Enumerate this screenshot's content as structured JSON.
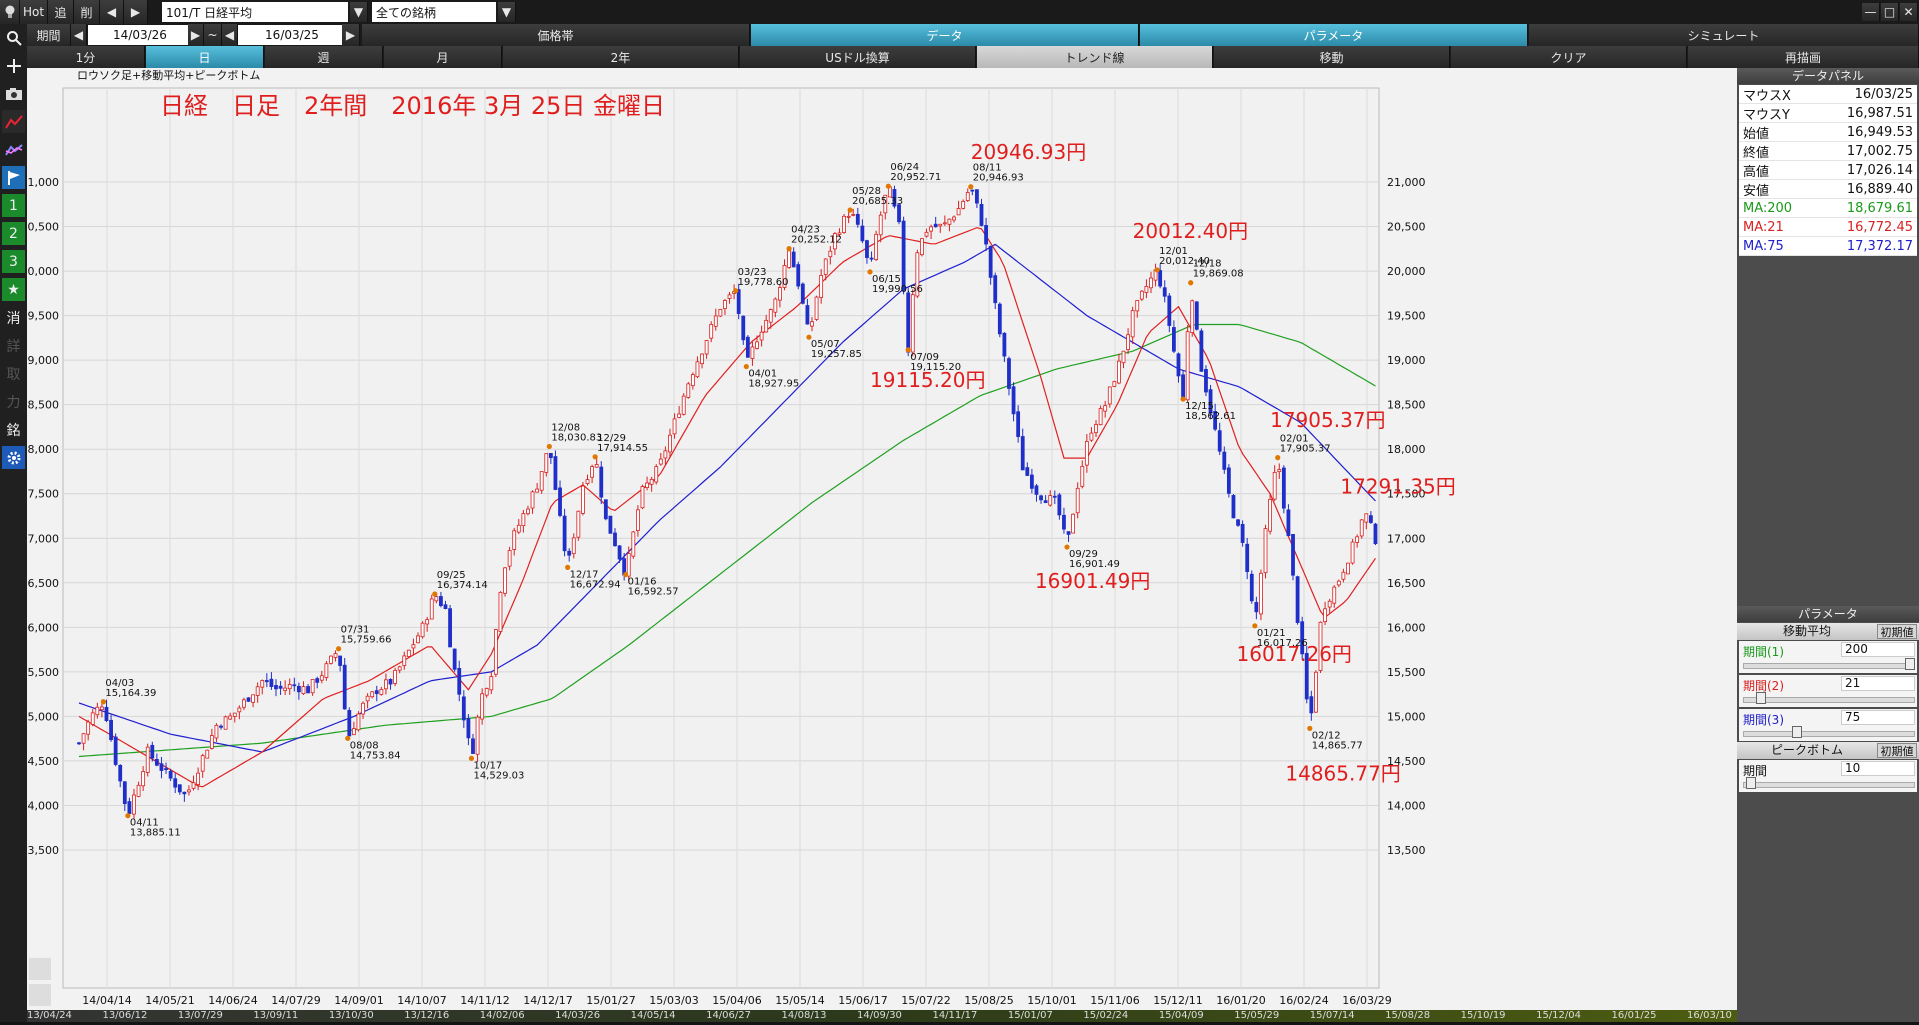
{
  "toolbar": {
    "hot": "Hot",
    "add": "追",
    "del": "削",
    "prev": "◀",
    "next": "▶",
    "symbol": "101/T 日経平均",
    "universe": "全ての銘柄"
  },
  "row2": {
    "period_label": "期間",
    "from": "14/03/26",
    "tilde": "~",
    "to": "16/03/25",
    "tabs": [
      "価格帯",
      "データ",
      "パラメータ",
      "シミュレート"
    ]
  },
  "row3": {
    "timeframes": [
      "1分",
      "日",
      "週",
      "月",
      "2年"
    ],
    "tools": [
      "USドル換算",
      "トレンド線",
      "移動",
      "クリア",
      "再描画"
    ]
  },
  "sidebar": {
    "icons": [
      "search-icon",
      "plus-icon",
      "camera-icon",
      "chart-line-icon",
      "chart-multi-icon",
      "flag-icon",
      "number-1-icon",
      "number-2-icon",
      "number-3-icon",
      "star-icon"
    ],
    "labels": [
      "1",
      "2",
      "3",
      "★",
      "消",
      "詳",
      "取",
      "力",
      "銘"
    ]
  },
  "chart_data": {
    "type": "candlestick",
    "subtitle": "ロウソク足+移動平均+ピークボトム",
    "title": "日経　日足　2年間　2016年 3月 25日 金曜日",
    "ylim": [
      13500,
      21000
    ],
    "yticks": [
      "13,500",
      "14,000",
      "14,500",
      "15,000",
      "15,500",
      "16,000",
      "16,500",
      "17,000",
      "17,500",
      "18,000",
      "18,500",
      "19,000",
      "19,500",
      "20,000",
      "20,500",
      "21,000"
    ],
    "xticks": [
      "14/04/14",
      "14/05/21",
      "14/06/24",
      "14/07/29",
      "14/09/01",
      "14/10/07",
      "14/11/12",
      "14/12/17",
      "15/01/27",
      "15/03/03",
      "15/04/06",
      "15/05/14",
      "15/06/17",
      "15/07/22",
      "15/08/25",
      "15/10/01",
      "15/11/06",
      "15/12/11",
      "16/01/20",
      "16/02/24",
      "16/03/29"
    ],
    "price_path": [
      [
        0,
        14700
      ],
      [
        8,
        15000
      ],
      [
        16,
        15164.39
      ],
      [
        24,
        14500
      ],
      [
        32,
        13885.11
      ],
      [
        45,
        14600
      ],
      [
        60,
        14300
      ],
      [
        70,
        14100
      ],
      [
        80,
        14500
      ],
      [
        90,
        14900
      ],
      [
        100,
        15000
      ],
      [
        110,
        15200
      ],
      [
        120,
        15400
      ],
      [
        130,
        15300
      ],
      [
        140,
        15350
      ],
      [
        150,
        15300
      ],
      [
        160,
        15500
      ],
      [
        170,
        15759.66
      ],
      [
        176,
        14753.84
      ],
      [
        185,
        15100
      ],
      [
        195,
        15300
      ],
      [
        205,
        15400
      ],
      [
        215,
        15700
      ],
      [
        225,
        16000
      ],
      [
        233,
        16374.14
      ],
      [
        240,
        16200
      ],
      [
        245,
        15600
      ],
      [
        252,
        15000
      ],
      [
        257,
        14529.03
      ],
      [
        263,
        15200
      ],
      [
        270,
        15500
      ],
      [
        277,
        16600
      ],
      [
        284,
        17000
      ],
      [
        292,
        17300
      ],
      [
        300,
        17600
      ],
      [
        308,
        18030.83
      ],
      [
        315,
        17200
      ],
      [
        320,
        16672.94
      ],
      [
        330,
        17600
      ],
      [
        338,
        17914.55
      ],
      [
        345,
        17200
      ],
      [
        350,
        17000
      ],
      [
        358,
        16592.57
      ],
      [
        368,
        17500
      ],
      [
        380,
        17800
      ],
      [
        390,
        18300
      ],
      [
        400,
        18800
      ],
      [
        410,
        19200
      ],
      [
        420,
        19600
      ],
      [
        430,
        19778.6
      ],
      [
        437,
        18927.95
      ],
      [
        445,
        19300
      ],
      [
        455,
        19600
      ],
      [
        465,
        20252.12
      ],
      [
        472,
        19800
      ],
      [
        478,
        19257.85
      ],
      [
        485,
        19900
      ],
      [
        495,
        20400
      ],
      [
        505,
        20685.33
      ],
      [
        512,
        20400
      ],
      [
        518,
        19990.56
      ],
      [
        523,
        20500
      ],
      [
        530,
        20952.71
      ],
      [
        537,
        20500
      ],
      [
        543,
        19115.2
      ],
      [
        548,
        20200
      ],
      [
        556,
        20500
      ],
      [
        566,
        20500
      ],
      [
        576,
        20700
      ],
      [
        584,
        20946.93
      ],
      [
        592,
        20500
      ],
      [
        600,
        19600
      ],
      [
        608,
        18800
      ],
      [
        618,
        17800
      ],
      [
        628,
        17500
      ],
      [
        640,
        17400
      ],
      [
        647,
        16901.49
      ],
      [
        654,
        17600
      ],
      [
        662,
        18200
      ],
      [
        672,
        18500
      ],
      [
        682,
        19000
      ],
      [
        690,
        19500
      ],
      [
        698,
        19800
      ],
      [
        706,
        20012.4
      ],
      [
        712,
        19600
      ],
      [
        718,
        19000
      ],
      [
        723,
        18562.61
      ],
      [
        728,
        19869.08
      ],
      [
        734,
        19000
      ],
      [
        744,
        18200
      ],
      [
        754,
        17400
      ],
      [
        764,
        16800
      ],
      [
        770,
        16017.26
      ],
      [
        778,
        17200
      ],
      [
        785,
        17905.37
      ],
      [
        792,
        17000
      ],
      [
        800,
        15800
      ],
      [
        806,
        14865.77
      ],
      [
        814,
        16200
      ],
      [
        824,
        16500
      ],
      [
        834,
        16900
      ],
      [
        842,
        17291.35
      ],
      [
        850,
        16950
      ]
    ],
    "ma21_path": [
      [
        0,
        15000
      ],
      [
        40,
        14600
      ],
      [
        80,
        14200
      ],
      [
        120,
        14600
      ],
      [
        160,
        15200
      ],
      [
        190,
        15400
      ],
      [
        230,
        15800
      ],
      [
        255,
        15300
      ],
      [
        270,
        15700
      ],
      [
        290,
        16500
      ],
      [
        310,
        17400
      ],
      [
        330,
        17600
      ],
      [
        350,
        17300
      ],
      [
        380,
        17700
      ],
      [
        410,
        18600
      ],
      [
        440,
        19200
      ],
      [
        470,
        19600
      ],
      [
        500,
        20100
      ],
      [
        530,
        20400
      ],
      [
        560,
        20300
      ],
      [
        590,
        20500
      ],
      [
        605,
        20100
      ],
      [
        630,
        18800
      ],
      [
        645,
        17900
      ],
      [
        660,
        17900
      ],
      [
        680,
        18500
      ],
      [
        700,
        19300
      ],
      [
        720,
        19600
      ],
      [
        740,
        19000
      ],
      [
        760,
        18000
      ],
      [
        780,
        17500
      ],
      [
        800,
        16700
      ],
      [
        815,
        16100
      ],
      [
        830,
        16300
      ],
      [
        850,
        16800
      ]
    ],
    "ma75_path": [
      [
        0,
        15150
      ],
      [
        60,
        14800
      ],
      [
        120,
        14600
      ],
      [
        180,
        15000
      ],
      [
        230,
        15400
      ],
      [
        270,
        15500
      ],
      [
        300,
        15800
      ],
      [
        340,
        16500
      ],
      [
        380,
        17200
      ],
      [
        420,
        17800
      ],
      [
        460,
        18500
      ],
      [
        500,
        19200
      ],
      [
        540,
        19800
      ],
      [
        580,
        20100
      ],
      [
        600,
        20300
      ],
      [
        630,
        19900
      ],
      [
        660,
        19500
      ],
      [
        690,
        19200
      ],
      [
        720,
        18900
      ],
      [
        760,
        18700
      ],
      [
        800,
        18300
      ],
      [
        850,
        17400
      ]
    ],
    "ma200_path": [
      [
        0,
        14550
      ],
      [
        120,
        14700
      ],
      [
        200,
        14900
      ],
      [
        270,
        15000
      ],
      [
        310,
        15200
      ],
      [
        360,
        15800
      ],
      [
        420,
        16600
      ],
      [
        480,
        17400
      ],
      [
        540,
        18100
      ],
      [
        590,
        18600
      ],
      [
        640,
        18900
      ],
      [
        690,
        19100
      ],
      [
        730,
        19400
      ],
      [
        760,
        19400
      ],
      [
        800,
        19200
      ],
      [
        850,
        18700
      ]
    ],
    "peaks": [
      {
        "i": 16,
        "v": 15164.39,
        "d": "04/03",
        "pos": "above",
        "lbl": "15,164.39"
      },
      {
        "i": 32,
        "v": 13885.11,
        "d": "04/11",
        "pos": "below",
        "lbl": "13,885.11"
      },
      {
        "i": 170,
        "v": 15759.66,
        "d": "07/31",
        "pos": "above",
        "lbl": "15,759.66"
      },
      {
        "i": 176,
        "v": 14753.84,
        "d": "08/08",
        "pos": "below",
        "lbl": "14,753.84"
      },
      {
        "i": 233,
        "v": 16374.14,
        "d": "09/25",
        "pos": "above",
        "lbl": "16,374.14"
      },
      {
        "i": 257,
        "v": 14529.03,
        "d": "10/17",
        "pos": "below",
        "lbl": "14,529.03"
      },
      {
        "i": 308,
        "v": 18030.83,
        "d": "12/08",
        "pos": "above",
        "lbl": "18,030.83"
      },
      {
        "i": 320,
        "v": 16672.94,
        "d": "12/17",
        "pos": "below",
        "lbl": "16,672.94"
      },
      {
        "i": 338,
        "v": 17914.55,
        "d": "12/29",
        "pos": "above",
        "lbl": "17,914.55"
      },
      {
        "i": 358,
        "v": 16592.57,
        "d": "01/16",
        "pos": "below",
        "lbl": "16,592.57"
      },
      {
        "i": 430,
        "v": 19778.6,
        "d": "03/23",
        "pos": "above",
        "lbl": "19,778.60"
      },
      {
        "i": 437,
        "v": 18927.95,
        "d": "04/01",
        "pos": "below",
        "lbl": "18,927.95"
      },
      {
        "i": 465,
        "v": 20252.12,
        "d": "04/23",
        "pos": "above",
        "lbl": "20,252.12"
      },
      {
        "i": 478,
        "v": 19257.85,
        "d": "05/07",
        "pos": "below",
        "lbl": "19,257.85"
      },
      {
        "i": 505,
        "v": 20685.33,
        "d": "05/28",
        "pos": "above",
        "lbl": "20,685.33"
      },
      {
        "i": 518,
        "v": 19990.56,
        "d": "06/15",
        "pos": "below",
        "lbl": "19,990.56"
      },
      {
        "i": 530,
        "v": 20952.71,
        "d": "06/24",
        "pos": "above",
        "lbl": "20,952.71"
      },
      {
        "i": 543,
        "v": 19115.2,
        "d": "07/09",
        "pos": "below",
        "lbl": "19,115.20"
      },
      {
        "i": 584,
        "v": 20946.93,
        "d": "08/11",
        "pos": "above",
        "lbl": "20,946.93"
      },
      {
        "i": 647,
        "v": 16901.49,
        "d": "09/29",
        "pos": "below",
        "lbl": "16,901.49"
      },
      {
        "i": 706,
        "v": 20012.4,
        "d": "12/01",
        "pos": "above",
        "lbl": "20,012.40"
      },
      {
        "i": 723,
        "v": 18562.61,
        "d": "12/15",
        "pos": "below",
        "lbl": "18,562.61"
      },
      {
        "i": 728,
        "v": 19869.08,
        "d": "12/18",
        "pos": "above",
        "lbl": "19,869.08"
      },
      {
        "i": 770,
        "v": 16017.26,
        "d": "01/21",
        "pos": "below",
        "lbl": "16,017.26"
      },
      {
        "i": 785,
        "v": 17905.37,
        "d": "02/01",
        "pos": "above",
        "lbl": "17,905.37"
      },
      {
        "i": 806,
        "v": 14865.77,
        "d": "02/12",
        "pos": "below",
        "lbl": "14,865.77"
      }
    ],
    "big_labels": [
      {
        "text": "20946.93円",
        "x": 584,
        "v": 21260
      },
      {
        "text": "20012.40円",
        "x": 690,
        "v": 20370
      },
      {
        "text": "19115.20円",
        "x": 518,
        "v": 18700
      },
      {
        "text": "17905.37円",
        "x": 780,
        "v": 18250
      },
      {
        "text": "17291.35円",
        "x": 826,
        "v": 17500
      },
      {
        "text": "16901.49円",
        "x": 626,
        "v": 16440
      },
      {
        "text": "16017.26円",
        "x": 758,
        "v": 15620
      },
      {
        "text": "14865.77円",
        "x": 790,
        "v": 14280
      }
    ],
    "colors": {
      "up": "#d81f1f",
      "down": "#1f2fc8",
      "ma21": "#e02020",
      "ma75": "#2020d0",
      "ma200": "#20a020",
      "label": "#e01e1e"
    }
  },
  "panel": {
    "title": "データパネル",
    "rows": [
      {
        "label": "マウスX",
        "value": "16/03/25",
        "color": "#111"
      },
      {
        "label": "マウスY",
        "value": "16,987.51",
        "color": "#111"
      },
      {
        "label": "始値",
        "value": "16,949.53",
        "color": "#111"
      },
      {
        "label": "終値",
        "value": "17,002.75",
        "color": "#111"
      },
      {
        "label": "高値",
        "value": "17,026.14",
        "color": "#111"
      },
      {
        "label": "安値",
        "value": "16,889.40",
        "color": "#111"
      },
      {
        "label": "MA:200",
        "value": "18,679.61",
        "color": "#1a9a1a"
      },
      {
        "label": "MA:21",
        "value": "16,772.45",
        "color": "#d82020"
      },
      {
        "label": "MA:75",
        "value": "17,372.17",
        "color": "#2020c8"
      }
    ],
    "param_title": "パラメータ",
    "ma_section": "移動平均",
    "reset": "初期値",
    "params": [
      {
        "label": "期間(1)",
        "value": "200",
        "color": "#1a9a1a",
        "level": 1.0
      },
      {
        "label": "期間(2)",
        "value": "21",
        "color": "#d82020",
        "level": 0.08
      },
      {
        "label": "期間(3)",
        "value": "75",
        "color": "#2020c8",
        "level": 0.3
      }
    ],
    "peak_section": "ピークボトム",
    "peak_param": {
      "label": "期間",
      "value": "10",
      "level": 0.02
    }
  },
  "bottom_dates": [
    "13/04/24",
    "13/06/12",
    "13/07/29",
    "13/09/11",
    "13/10/30",
    "13/12/16",
    "14/02/06",
    "14/03/26",
    "14/05/14",
    "14/06/27",
    "14/08/13",
    "14/09/30",
    "14/11/17",
    "15/01/07",
    "15/02/24",
    "15/04/09",
    "15/05/29",
    "15/07/14",
    "15/08/28",
    "15/10/19",
    "15/12/04",
    "16/01/25",
    "16/03/10"
  ]
}
